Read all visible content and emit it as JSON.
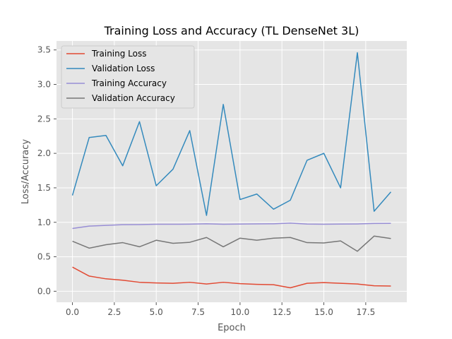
{
  "chart_data": {
    "type": "line",
    "title": "Training Loss and Accuracy (TL DenseNet 3L)",
    "xlabel": "Epoch",
    "ylabel": "Loss/Accuracy",
    "xlim": [
      -0.95,
      19.95
    ],
    "ylim": [
      -0.16,
      3.63
    ],
    "xticks": [
      0.0,
      2.5,
      5.0,
      7.5,
      10.0,
      12.5,
      15.0,
      17.5
    ],
    "xtick_labels": [
      "0.0",
      "2.5",
      "5.0",
      "7.5",
      "10.0",
      "12.5",
      "15.0",
      "17.5"
    ],
    "yticks": [
      0.0,
      0.5,
      1.0,
      1.5,
      2.0,
      2.5,
      3.0,
      3.5
    ],
    "ytick_labels": [
      "0.0",
      "0.5",
      "1.0",
      "1.5",
      "2.0",
      "2.5",
      "3.0",
      "3.5"
    ],
    "grid": true,
    "legend_position": "top-left",
    "background_color": "#e5e5e5",
    "grid_color": "#ffffff",
    "x": [
      0,
      1,
      2,
      3,
      4,
      5,
      6,
      7,
      8,
      9,
      10,
      11,
      12,
      13,
      14,
      15,
      16,
      17,
      18,
      19
    ],
    "series": [
      {
        "name": "Training Loss",
        "color": "#e24a33",
        "values": [
          0.35,
          0.22,
          0.18,
          0.16,
          0.13,
          0.12,
          0.115,
          0.13,
          0.105,
          0.13,
          0.11,
          0.1,
          0.095,
          0.05,
          0.115,
          0.125,
          0.115,
          0.105,
          0.08,
          0.075
        ]
      },
      {
        "name": "Validation Loss",
        "color": "#348abd",
        "values": [
          1.39,
          2.23,
          2.26,
          1.82,
          2.46,
          1.53,
          1.77,
          2.33,
          1.1,
          2.71,
          1.33,
          1.41,
          1.19,
          1.32,
          1.9,
          2.0,
          1.5,
          3.46,
          1.16,
          1.44
        ]
      },
      {
        "name": "Training Accuracy",
        "color": "#988ed5",
        "values": [
          0.91,
          0.945,
          0.955,
          0.965,
          0.967,
          0.972,
          0.972,
          0.973,
          0.978,
          0.972,
          0.975,
          0.977,
          0.978,
          0.988,
          0.975,
          0.972,
          0.974,
          0.976,
          0.983,
          0.985
        ]
      },
      {
        "name": "Validation Accuracy",
        "color": "#777777",
        "values": [
          0.725,
          0.625,
          0.675,
          0.705,
          0.645,
          0.74,
          0.695,
          0.71,
          0.78,
          0.645,
          0.77,
          0.74,
          0.77,
          0.78,
          0.705,
          0.7,
          0.73,
          0.58,
          0.8,
          0.765
        ]
      }
    ]
  }
}
